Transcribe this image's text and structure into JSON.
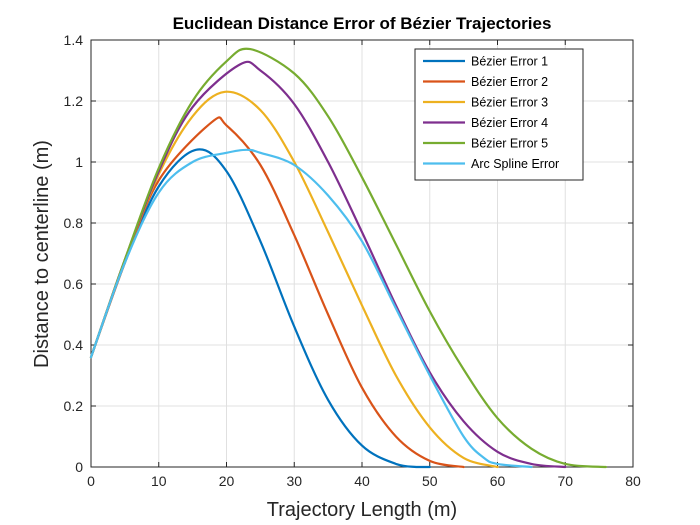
{
  "chart_data": {
    "type": "line",
    "title": "Euclidean Distance Error of Bézier Trajectories",
    "xlabel": "Trajectory Length (m)",
    "ylabel": "Distance to centerline (m)",
    "xlim": [
      0,
      80
    ],
    "ylim": [
      0,
      1.4
    ],
    "xticks": [
      "0",
      "10",
      "20",
      "30",
      "40",
      "50",
      "60",
      "70",
      "80"
    ],
    "yticks": [
      "0",
      "0.2",
      "0.4",
      "0.6",
      "0.8",
      "1",
      "1.2",
      "1.4"
    ],
    "grid": true,
    "legend_position": "top-right",
    "series": [
      {
        "name": "Bézier Error 1",
        "color": "#0072BD",
        "x": [
          0,
          5,
          10,
          15.5,
          20,
          25,
          30,
          35,
          40,
          45,
          48,
          50
        ],
        "y": [
          0.36,
          0.67,
          0.92,
          1.04,
          0.97,
          0.74,
          0.46,
          0.22,
          0.07,
          0.01,
          0.0,
          0.0
        ]
      },
      {
        "name": "Bézier Error 2",
        "color": "#D95319",
        "x": [
          0,
          5,
          10,
          17.8,
          20,
          25,
          30,
          35,
          40,
          45,
          50,
          55
        ],
        "y": [
          0.36,
          0.67,
          0.94,
          1.13,
          1.12,
          0.99,
          0.76,
          0.5,
          0.26,
          0.1,
          0.02,
          0.0
        ]
      },
      {
        "name": "Bézier Error 3",
        "color": "#EDB120",
        "x": [
          0,
          5,
          10,
          15,
          19.8,
          25,
          30,
          35,
          40,
          45,
          50,
          55,
          60
        ],
        "y": [
          0.36,
          0.68,
          0.96,
          1.15,
          1.23,
          1.17,
          1.0,
          0.77,
          0.53,
          0.3,
          0.13,
          0.03,
          0.0
        ]
      },
      {
        "name": "Bézier Error 4",
        "color": "#7E2F8E",
        "x": [
          0,
          5,
          10,
          15,
          22,
          25,
          30,
          35,
          40,
          45,
          50,
          55,
          60,
          65,
          70
        ],
        "y": [
          0.36,
          0.68,
          0.97,
          1.18,
          1.32,
          1.3,
          1.19,
          1.0,
          0.77,
          0.53,
          0.31,
          0.15,
          0.05,
          0.01,
          0.0
        ]
      },
      {
        "name": "Bézier Error 5",
        "color": "#77AC30",
        "x": [
          0,
          5,
          10,
          15,
          20,
          23.5,
          30,
          35,
          40,
          45,
          50,
          55,
          60,
          65,
          70,
          76
        ],
        "y": [
          0.36,
          0.68,
          0.98,
          1.2,
          1.33,
          1.37,
          1.29,
          1.15,
          0.95,
          0.73,
          0.51,
          0.32,
          0.16,
          0.06,
          0.01,
          0.0
        ]
      },
      {
        "name": "Arc Spline Error",
        "color": "#4DBEEE",
        "x": [
          0,
          5,
          10,
          15,
          20,
          23,
          25,
          30,
          35,
          40,
          45,
          50,
          55,
          58,
          60,
          65
        ],
        "y": [
          0.36,
          0.67,
          0.9,
          1.0,
          1.03,
          1.04,
          1.03,
          0.99,
          0.89,
          0.74,
          0.52,
          0.3,
          0.1,
          0.03,
          0.01,
          0.0
        ]
      }
    ]
  }
}
